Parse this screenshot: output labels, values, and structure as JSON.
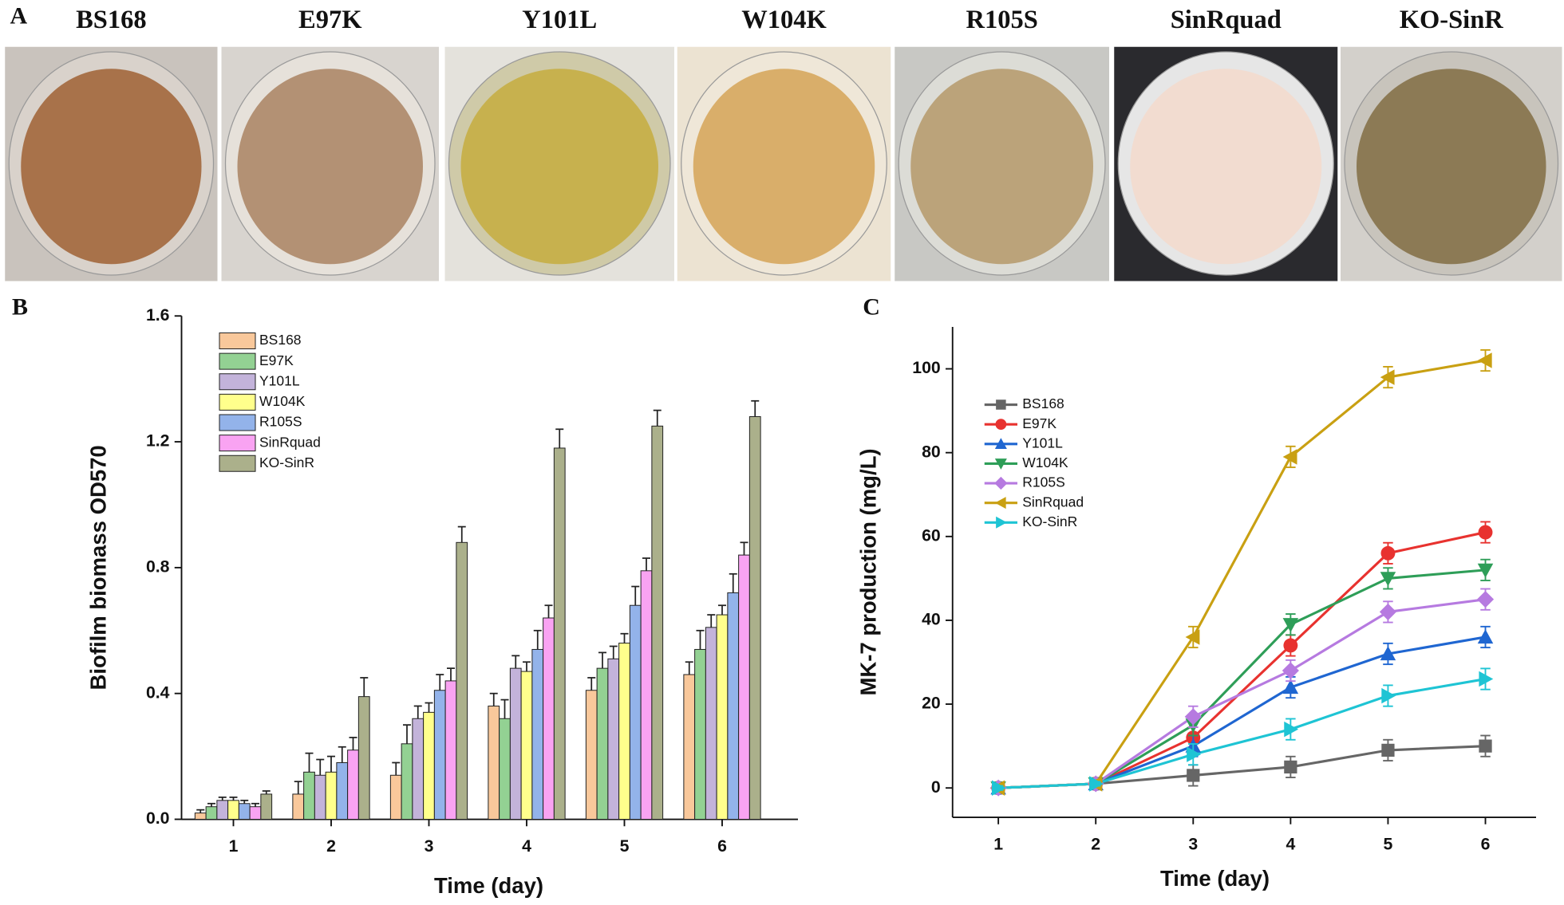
{
  "panel_labels": [
    "A",
    "B",
    "C"
  ],
  "photos": {
    "labels": [
      "BS168",
      "E97K",
      "Y101L",
      "W104K",
      "R105S",
      "SinRquad",
      "KO-SinR"
    ]
  },
  "chart_data": [
    {
      "type": "bar",
      "xlabel": "Time (day)",
      "ylabel": "Biofilm biomass OD570",
      "categories": [
        "1",
        "2",
        "3",
        "4",
        "5",
        "6"
      ],
      "ylim": [
        0,
        1.6
      ],
      "yticks": [
        {
          "value": 0,
          "label": "0.0"
        },
        0.4,
        0.8,
        1.2,
        1.6
      ],
      "series": [
        {
          "name": "BS168",
          "color": "#f9c89b",
          "values": [
            0.02,
            0.08,
            0.14,
            0.36,
            0.41,
            0.46
          ],
          "errors": [
            0.01,
            0.04,
            0.04,
            0.04,
            0.04,
            0.04
          ]
        },
        {
          "name": "E97K",
          "color": "#93d193",
          "values": [
            0.04,
            0.15,
            0.24,
            0.32,
            0.48,
            0.54
          ],
          "errors": [
            0.01,
            0.06,
            0.06,
            0.06,
            0.05,
            0.06
          ]
        },
        {
          "name": "Y101L",
          "color": "#c3b3da",
          "values": [
            0.06,
            0.14,
            0.32,
            0.48,
            0.51,
            0.61
          ],
          "errors": [
            0.01,
            0.05,
            0.04,
            0.04,
            0.04,
            0.04
          ]
        },
        {
          "name": "W104K",
          "color": "#ffff8c",
          "values": [
            0.06,
            0.15,
            0.34,
            0.47,
            0.56,
            0.65
          ],
          "errors": [
            0.01,
            0.05,
            0.03,
            0.03,
            0.03,
            0.03
          ]
        },
        {
          "name": "R105S",
          "color": "#93b3ea",
          "values": [
            0.05,
            0.18,
            0.41,
            0.54,
            0.68,
            0.72
          ],
          "errors": [
            0.01,
            0.05,
            0.05,
            0.06,
            0.06,
            0.06
          ]
        },
        {
          "name": "SinRquad",
          "color": "#f9a3f2",
          "values": [
            0.04,
            0.22,
            0.44,
            0.64,
            0.79,
            0.84
          ],
          "errors": [
            0.01,
            0.04,
            0.04,
            0.04,
            0.04,
            0.04
          ]
        },
        {
          "name": "KO-SinR",
          "color": "#abb08b",
          "values": [
            0.08,
            0.39,
            0.88,
            1.18,
            1.25,
            1.28
          ],
          "errors": [
            0.01,
            0.06,
            0.05,
            0.06,
            0.05,
            0.05
          ]
        }
      ]
    },
    {
      "type": "line",
      "xlabel": "Time (day)",
      "ylabel": "MK-7 production (mg/L)",
      "x": [
        1,
        2,
        3,
        4,
        5,
        6
      ],
      "xlim": [
        0.53,
        6.52
      ],
      "xticks": [
        1,
        2,
        3,
        4,
        5,
        6
      ],
      "ylim": [
        -7,
        110
      ],
      "yticks": [
        0,
        20,
        40,
        60,
        80,
        100
      ],
      "series": [
        {
          "name": "BS168",
          "color": "#666666",
          "marker": "square",
          "values": [
            0,
            1,
            3,
            5,
            9,
            10
          ],
          "errors": [
            0.5,
            0.5,
            2.5,
            2.5,
            2.5,
            2.5
          ]
        },
        {
          "name": "E97K",
          "color": "#e8322f",
          "marker": "circle",
          "values": [
            0,
            1,
            12,
            34,
            56,
            61
          ],
          "errors": [
            0.5,
            0.5,
            2.5,
            2.5,
            2.5,
            2.5
          ]
        },
        {
          "name": "Y101L",
          "color": "#1f66d1",
          "marker": "triangle-up",
          "values": [
            0,
            1,
            10,
            24,
            32,
            36
          ],
          "errors": [
            0.5,
            0.5,
            2.5,
            2.5,
            2.5,
            2.5
          ]
        },
        {
          "name": "W104K",
          "color": "#2e9e58",
          "marker": "triangle-down",
          "values": [
            0,
            1,
            15,
            39,
            50,
            52
          ],
          "errors": [
            0.5,
            0.5,
            2.5,
            2.5,
            2.5,
            2.5
          ]
        },
        {
          "name": "R105S",
          "color": "#b67ae0",
          "marker": "diamond",
          "values": [
            0,
            1,
            17,
            28,
            42,
            45
          ],
          "errors": [
            0.5,
            0.5,
            2.5,
            2.5,
            2.5,
            2.5
          ]
        },
        {
          "name": "SinRquad",
          "color": "#c9a012",
          "marker": "triangle-left",
          "values": [
            0,
            1,
            36,
            79,
            98,
            102
          ],
          "errors": [
            0.5,
            0.5,
            2.5,
            2.5,
            2.5,
            2.5
          ]
        },
        {
          "name": "KO-SinR",
          "color": "#1ec4d4",
          "marker": "triangle-right",
          "values": [
            0,
            1,
            8,
            14,
            22,
            26
          ],
          "errors": [
            0.5,
            0.5,
            2.5,
            2.5,
            2.5,
            2.5
          ]
        }
      ]
    }
  ]
}
